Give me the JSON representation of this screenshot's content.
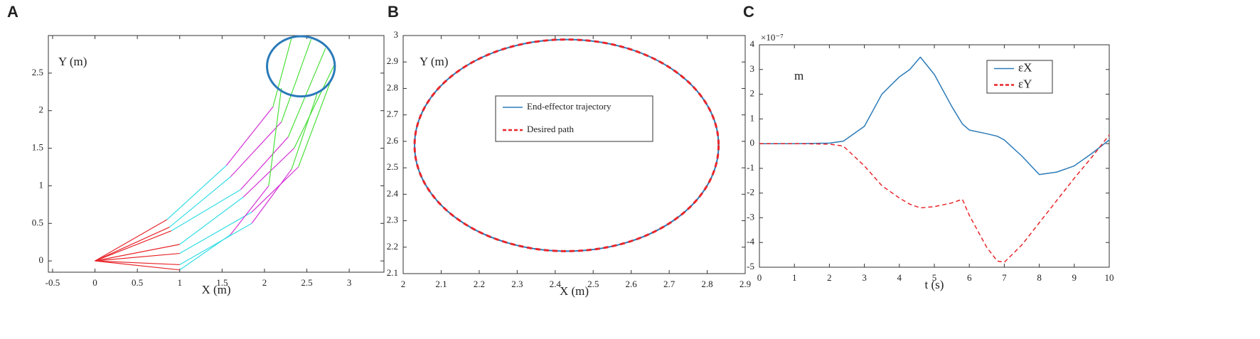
{
  "chart_data": [
    {
      "type": "arm",
      "label": "A",
      "xlabel": "X (m)",
      "ylabel": "Y (m)",
      "xlim": [
        -0.55,
        3.41
      ],
      "ylim": [
        -0.15,
        3.0
      ],
      "xticks": [
        -0.5,
        0,
        0.5,
        1,
        1.5,
        2,
        2.5,
        3
      ],
      "yticks": [
        0,
        0.5,
        1,
        1.5,
        2,
        2.5
      ],
      "link_colors": [
        "#e8262b",
        "#33dde6",
        "#d633d6",
        "#4be03b"
      ],
      "joints_x": [
        [
          0,
          0.85,
          1.55,
          2.1,
          2.32
        ],
        [
          0,
          0.88,
          1.6,
          2.2,
          2.55
        ],
        [
          0,
          0.9,
          1.72,
          2.28,
          2.72
        ],
        [
          0,
          1,
          1.75,
          2.35,
          2.82
        ],
        [
          0,
          1,
          1.85,
          2.4,
          2.8
        ],
        [
          0,
          1,
          1.85,
          2.32,
          2.62
        ],
        [
          0,
          1,
          1.6,
          2.05,
          2.2
        ]
      ],
      "joints_y": [
        [
          0,
          0.55,
          1.27,
          2.05,
          2.97
        ],
        [
          0,
          0.45,
          1.12,
          1.85,
          2.95
        ],
        [
          0,
          0.4,
          0.95,
          1.65,
          2.83
        ],
        [
          0,
          0.22,
          0.85,
          1.5,
          2.6
        ],
        [
          0,
          0.1,
          0.65,
          1.25,
          2.45
        ],
        [
          0,
          -0.05,
          0.5,
          1.22,
          2.22
        ],
        [
          0,
          -0.12,
          0.35,
          1.0,
          2.3
        ]
      ],
      "circle": {
        "center": [
          2.43,
          2.59
        ],
        "radius": 0.4,
        "color": "#2b7bb9"
      }
    },
    {
      "type": "ellipse",
      "label": "B",
      "xlabel": "X (m)",
      "ylabel": "Y (m)",
      "xlim": [
        2,
        2.9
      ],
      "ylim": [
        2.1,
        3
      ],
      "xticks": [
        2,
        2.1,
        2.2,
        2.3,
        2.4,
        2.5,
        2.6,
        2.7,
        2.8,
        2.9
      ],
      "yticks": [
        2.1,
        2.2,
        2.3,
        2.4,
        2.5,
        2.6,
        2.7,
        2.8,
        2.9,
        3
      ],
      "series": [
        {
          "name": "End-effector trajectory",
          "color": "#2b7bb9",
          "style": "solid",
          "center": [
            2.43,
            2.585
          ],
          "radius": 0.4
        },
        {
          "name": "Desired path",
          "color": "#e8262b",
          "style": "dashed",
          "center": [
            2.43,
            2.585
          ],
          "radius": 0.4
        }
      ]
    },
    {
      "type": "line",
      "label": "C",
      "xlabel": "t (s)",
      "ylabel": "m",
      "multiplier": "×10⁻⁷",
      "xlim": [
        0,
        10
      ],
      "ylim": [
        -5,
        4
      ],
      "xticks": [
        0,
        1,
        2,
        3,
        4,
        5,
        6,
        7,
        8,
        9,
        10
      ],
      "yticks": [
        -5,
        -4,
        -3,
        -2,
        -1,
        0,
        1,
        2,
        3,
        4
      ],
      "x": [
        0,
        1,
        2,
        2.4,
        3,
        3.5,
        4,
        4.3,
        4.6,
        5,
        5.5,
        5.8,
        6,
        6.5,
        6.8,
        7,
        7.5,
        8,
        8.5,
        9,
        9.5,
        10
      ],
      "series": [
        {
          "name": "εX",
          "color": "#2b7bb9",
          "style": "solid",
          "values": [
            0,
            0,
            0.02,
            0.1,
            0.7,
            2.0,
            2.7,
            3.0,
            3.5,
            2.8,
            1.5,
            0.8,
            0.55,
            0.4,
            0.3,
            0.15,
            -0.5,
            -1.25,
            -1.15,
            -0.9,
            -0.4,
            0.15
          ]
        },
        {
          "name": "εY",
          "color": "#e8262b",
          "style": "dashed",
          "values": [
            0,
            0,
            -0.02,
            -0.1,
            -0.9,
            -1.7,
            -2.2,
            -2.45,
            -2.6,
            -2.55,
            -2.4,
            -2.25,
            -2.9,
            -4.2,
            -4.75,
            -4.8,
            -4.1,
            -3.2,
            -2.3,
            -1.4,
            -0.55,
            0.35
          ]
        }
      ]
    }
  ]
}
